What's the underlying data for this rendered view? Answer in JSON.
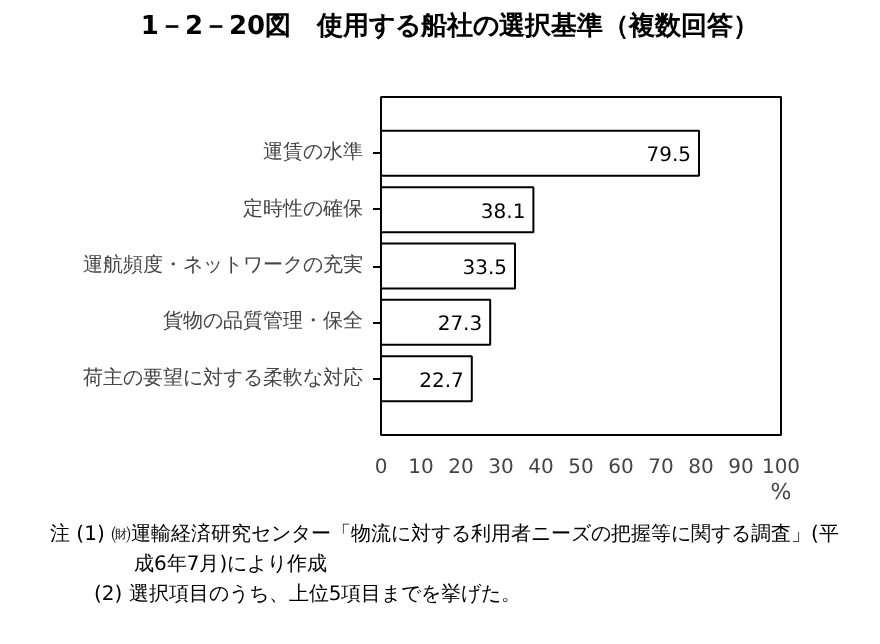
{
  "chart_data": {
    "type": "bar",
    "orientation": "horizontal",
    "title": "1－2－20図　使用する船社の選択基準（複数回答）",
    "categories": [
      "運賃の水準",
      "定時性の確保",
      "運航頻度・ネットワークの充実",
      "貨物の品質管理・保全",
      "荷主の要望に対する柔軟な対応"
    ],
    "values": [
      79.5,
      38.1,
      33.5,
      27.3,
      22.7
    ],
    "color": "#ffffff",
    "xlabel": "%",
    "xlim": [
      0,
      100
    ],
    "xticks": [
      0,
      10,
      20,
      30,
      40,
      50,
      60,
      70,
      80,
      90,
      100
    ],
    "data_labels": true,
    "grid": false,
    "annotations": [
      "注 (1) ㈶運輸経済研究センター「物流に対する利用者ニーズの把握等に関する調査」(平成6年7月)により作成",
      "(2) 選択項目のうち、上位5項目までを挙げた。"
    ]
  }
}
